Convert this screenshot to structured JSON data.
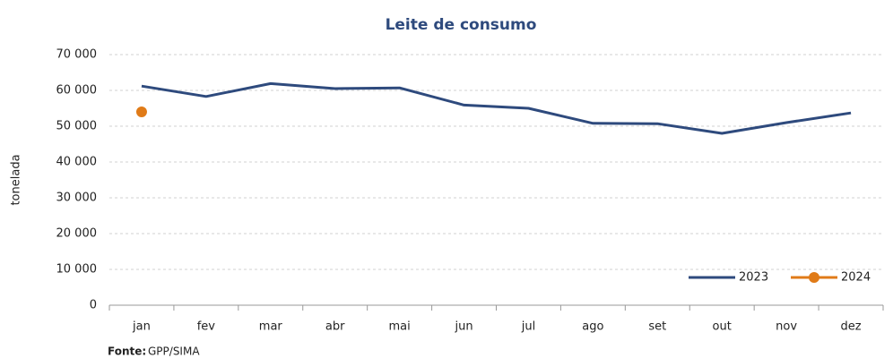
{
  "chart_data": {
    "type": "line",
    "title": "Leite de consumo",
    "y_label": "tonelada",
    "categories": [
      "jan",
      "fev",
      "mar",
      "abr",
      "mai",
      "jun",
      "jul",
      "ago",
      "set",
      "out",
      "nov",
      "dez"
    ],
    "series": [
      {
        "name": "2023",
        "color": "#2e4a7d",
        "marker": false,
        "values": [
          61200,
          58300,
          61900,
          60500,
          60700,
          55900,
          55000,
          50800,
          50700,
          48000,
          51000,
          53700
        ]
      },
      {
        "name": "2024",
        "color": "#e07b18",
        "marker": true,
        "values": [
          54000,
          null,
          null,
          null,
          null,
          null,
          null,
          null,
          null,
          null,
          null,
          null
        ]
      }
    ],
    "ylim": [
      0,
      70000
    ],
    "yticks": [
      {
        "value": 0,
        "label": "0"
      },
      {
        "value": 10000,
        "label": "10 000"
      },
      {
        "value": 20000,
        "label": "20 000"
      },
      {
        "value": 30000,
        "label": "30 000"
      },
      {
        "value": 40000,
        "label": "40 000"
      },
      {
        "value": 50000,
        "label": "50 000"
      },
      {
        "value": 60000,
        "label": "60 000"
      },
      {
        "value": 70000,
        "label": "70 000"
      }
    ],
    "grid": true,
    "legend": "lower right",
    "source_label": "Fonte:",
    "source": "GPP/SIMA"
  }
}
